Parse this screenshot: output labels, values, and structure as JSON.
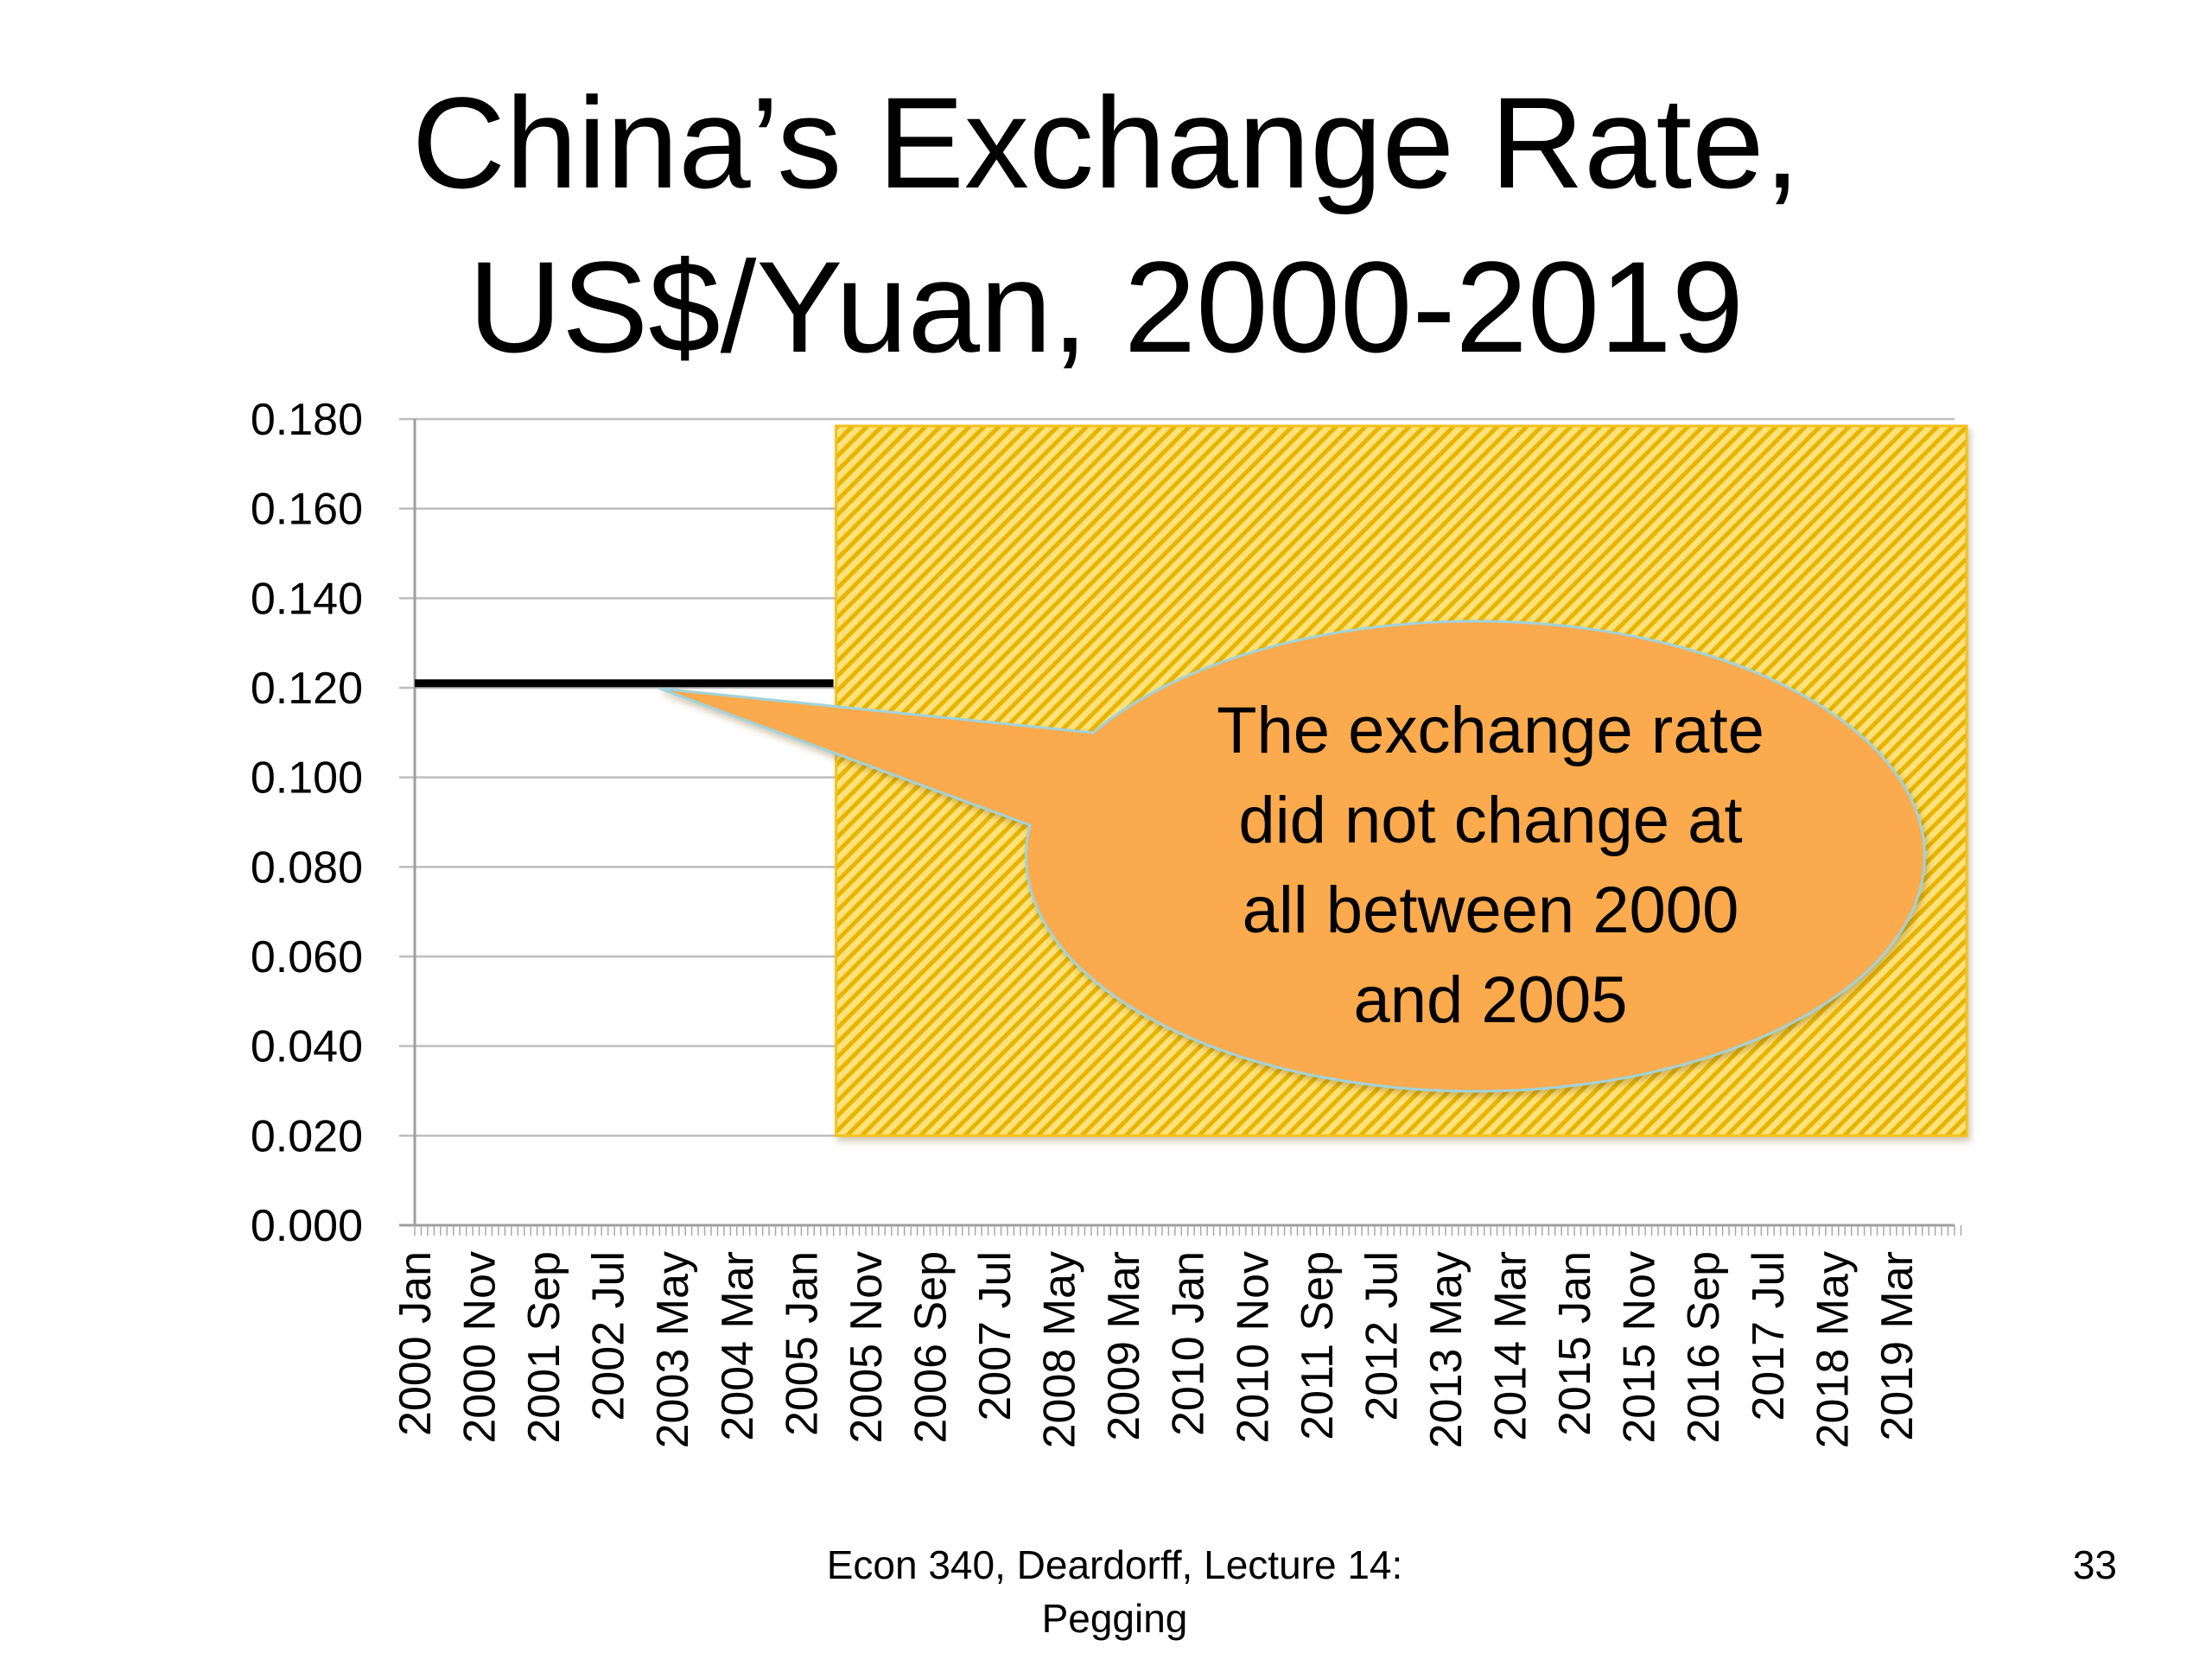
{
  "slide": {
    "title_line1": "China’s Exchange Rate,",
    "title_line2": "US$/Yuan, 2000-2019",
    "footer_line1": "Econ 340, Deardorff, Lecture 14:",
    "footer_line2": "Pegging",
    "page_number": "33"
  },
  "chart_data": {
    "type": "line",
    "title": "",
    "xlabel": "",
    "ylabel": "",
    "ylim": [
      0,
      0.18
    ],
    "yticks": [
      "0.000",
      "0.020",
      "0.040",
      "0.060",
      "0.080",
      "0.100",
      "0.120",
      "0.140",
      "0.160",
      "0.180"
    ],
    "xtick_labels": [
      "2000 Jan",
      "2000 Nov",
      "2001 Sep",
      "2002 Jul",
      "2003 May",
      "2004 Mar",
      "2005 Jan",
      "2005 Nov",
      "2006 Sep",
      "2007 Jul",
      "2008 May",
      "2009 Mar",
      "2010 Jan",
      "2010 Nov",
      "2011 Sep",
      "2012 Jul",
      "2013 May",
      "2014 Mar",
      "2015 Jan",
      "2015 Nov",
      "2016 Sep",
      "2017 Jul",
      "2018 May",
      "2019 Mar"
    ],
    "x_range": [
      "2000 Jan",
      "2019 Dec"
    ],
    "grid": true,
    "series": [
      {
        "x": [
          "2000 Jan",
          "2005 Jun"
        ],
        "values": [
          0.121,
          0.121
        ],
        "color": "#000000"
      }
    ],
    "visible_through": "2005 Jun",
    "overlay": {
      "fill": "#FFE27A",
      "stripe_color": "#E8B400",
      "pattern": "diagonal-stripes"
    },
    "annotation": {
      "text_lines": [
        "The exchange rate",
        "did not change at",
        "all between 2000",
        "and 2005"
      ],
      "fill": "#FBAA4D",
      "points_to": {
        "x": "2003 Mar",
        "y": 0.121
      }
    }
  }
}
